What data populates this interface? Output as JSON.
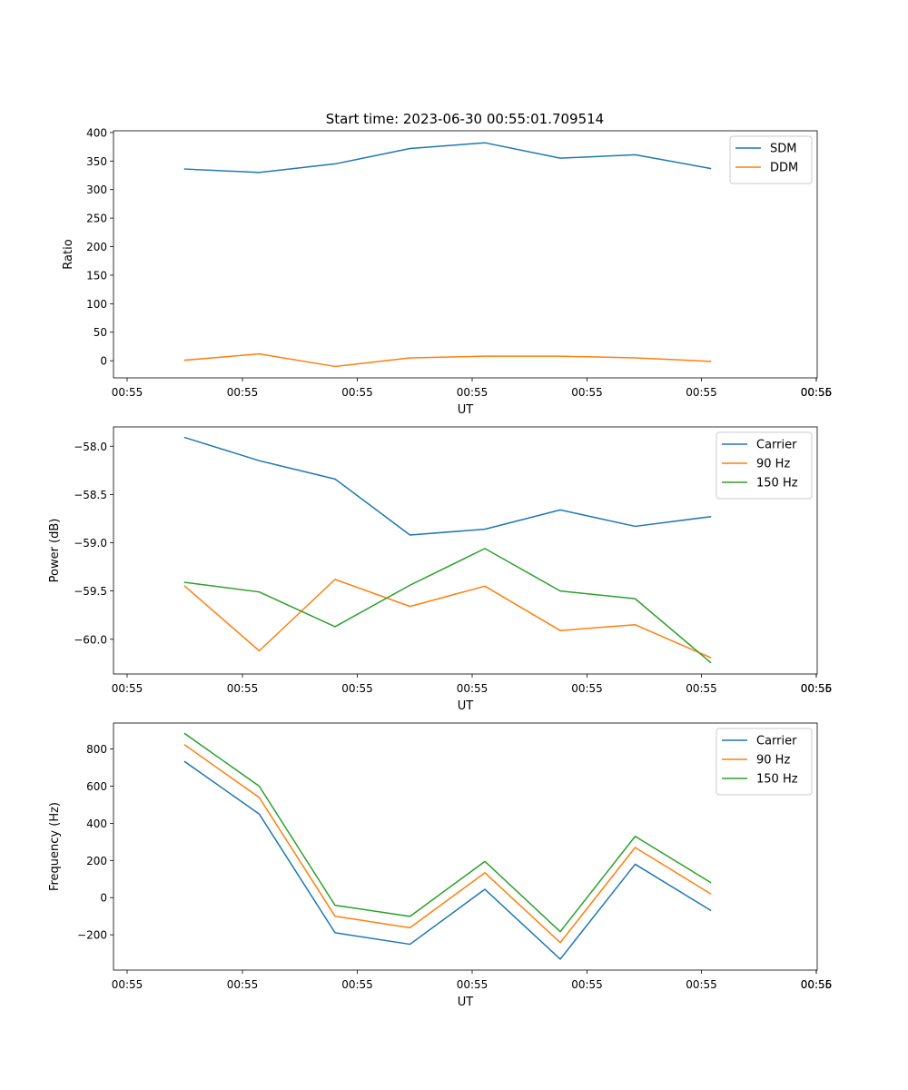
{
  "figure_title": "Start time: 2023-06-30 00:55:01.709514",
  "chart_data": [
    {
      "type": "line",
      "title": "Start time: 2023-06-30 00:55:01.709514",
      "xlabel": "UT",
      "ylabel": "Ratio",
      "x_tick_labels": [
        "00:55",
        "00:55",
        "00:55",
        "00:55",
        "00:55",
        "00:55",
        "00:55",
        "00:56"
      ],
      "ylim": [
        -30,
        403
      ],
      "y_ticks": [
        0,
        50,
        100,
        150,
        200,
        250,
        300,
        350,
        400
      ],
      "y_tick_labels": [
        "0",
        "50",
        "100",
        "150",
        "200",
        "250",
        "300",
        "350",
        "400"
      ],
      "grid": false,
      "legend": "top-right",
      "series": [
        {
          "name": "SDM",
          "color": "#1f77b4",
          "values": [
            336,
            330,
            345,
            372,
            382,
            355,
            361,
            337
          ]
        },
        {
          "name": "DDM",
          "color": "#ff7f0e",
          "values": [
            1,
            12,
            -10,
            5,
            8,
            8,
            5,
            -1
          ]
        }
      ]
    },
    {
      "type": "line",
      "title": "",
      "xlabel": "UT",
      "ylabel": "Power (dB)",
      "x_tick_labels": [
        "00:55",
        "00:55",
        "00:55",
        "00:55",
        "00:55",
        "00:55",
        "00:55",
        "00:56"
      ],
      "ylim": [
        -60.36,
        -57.8
      ],
      "y_ticks": [
        -60.0,
        -59.5,
        -59.0,
        -58.5,
        -58.0
      ],
      "y_tick_labels": [
        "−60.0",
        "−59.5",
        "−59.0",
        "−58.5",
        "−58.0"
      ],
      "grid": false,
      "legend": "top-right",
      "series": [
        {
          "name": "Carrier",
          "color": "#1f77b4",
          "values": [
            -57.91,
            -58.15,
            -58.34,
            -58.92,
            -58.86,
            -58.66,
            -58.83,
            -58.73
          ]
        },
        {
          "name": "90 Hz",
          "color": "#ff7f0e",
          "values": [
            -59.45,
            -60.12,
            -59.38,
            -59.66,
            -59.45,
            -59.91,
            -59.85,
            -60.19
          ]
        },
        {
          "name": "150 Hz",
          "color": "#2ca02c",
          "values": [
            -59.41,
            -59.51,
            -59.87,
            -59.44,
            -59.06,
            -59.5,
            -59.58,
            -60.24
          ]
        }
      ]
    },
    {
      "type": "line",
      "title": "",
      "xlabel": "UT",
      "ylabel": "Frequency (Hz)",
      "x_tick_labels": [
        "00:55",
        "00:55",
        "00:55",
        "00:55",
        "00:55",
        "00:55",
        "00:55",
        "00:56"
      ],
      "ylim": [
        -390,
        940
      ],
      "y_ticks": [
        -200,
        0,
        200,
        400,
        600,
        800
      ],
      "y_tick_labels": [
        "−200",
        "0",
        "200",
        "400",
        "600",
        "800"
      ],
      "grid": false,
      "legend": "top-right",
      "series": [
        {
          "name": "Carrier",
          "color": "#1f77b4",
          "values": [
            732,
            450,
            -189,
            -251,
            45,
            -331,
            180,
            -68
          ]
        },
        {
          "name": "90 Hz",
          "color": "#ff7f0e",
          "values": [
            822,
            539,
            -100,
            -162,
            134,
            -242,
            270,
            21
          ]
        },
        {
          "name": "150 Hz",
          "color": "#2ca02c",
          "values": [
            883,
            600,
            -41,
            -101,
            195,
            -183,
            330,
            82
          ]
        }
      ]
    }
  ]
}
